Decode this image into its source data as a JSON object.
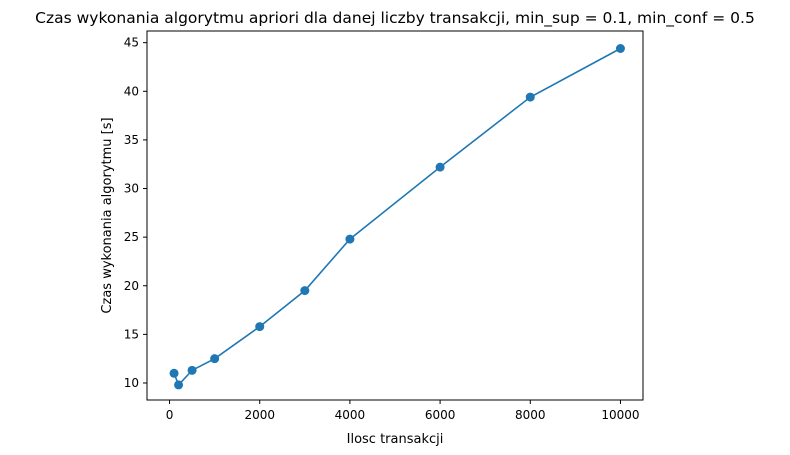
{
  "chart_data": {
    "type": "line",
    "title": "Czas wykonania algorytmu apriori dla danej liczby transakcji, min_sup = 0.1, min_conf = 0.5",
    "xlabel": "Ilosc transakcji",
    "ylabel": "Czas wykonania algorytmu [s]",
    "xlim": [
      -500,
      10500
    ],
    "ylim": [
      8.25,
      46.2
    ],
    "xticks": [
      0,
      2000,
      4000,
      6000,
      8000,
      10000
    ],
    "yticks": [
      10,
      15,
      20,
      25,
      30,
      35,
      40,
      45
    ],
    "grid": false,
    "marker": "circle",
    "series": [
      {
        "color": "#1f77b4",
        "x": [
          100,
          200,
          500,
          1000,
          2000,
          3000,
          4000,
          6000,
          8000,
          10000
        ],
        "y": [
          11.0,
          9.8,
          11.3,
          12.5,
          15.8,
          19.5,
          24.8,
          32.2,
          39.4,
          44.4
        ]
      }
    ]
  }
}
